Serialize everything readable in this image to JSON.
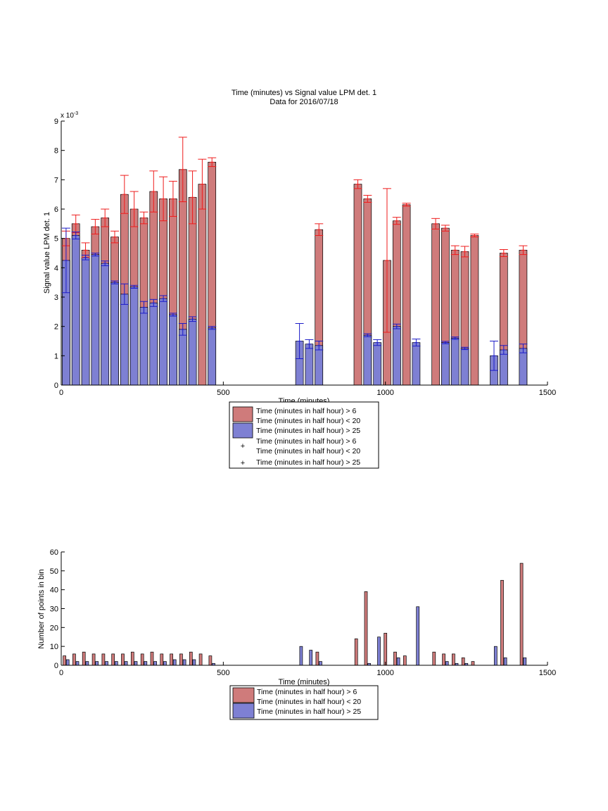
{
  "figure": {
    "title_line1": "Time (minutes) vs Signal value LPM det. 1",
    "title_line2": "Data for 2016/07/18"
  },
  "legend": {
    "entry_gt6_bar": "Time (minutes in half hour) > 6",
    "entry_lt20_bar": "Time (minutes in half hour) < 20",
    "entry_gt25_bar": "Time (minutes in half hour) > 25",
    "entry_gt6_marker": "Time (minutes in half hour) > 6",
    "entry_lt20_marker": "Time (minutes in half hour) < 20",
    "entry_gt25_marker": "Time (minutes in half hour) > 25"
  },
  "colors": {
    "red_bar": "#cf7b7b",
    "blue_bar": "#7e80d3",
    "red_err": "#ee1c1c",
    "blue_err": "#1c1cc8"
  },
  "chart_data": [
    {
      "type": "bar",
      "title": "Time (minutes) vs Signal value LPM det. 1",
      "subtitle": "Data for 2016/07/18",
      "xlabel": "Time (minutes)",
      "ylabel": "Signal value LPM det. 1",
      "y_exponent": "x 10",
      "y_exponent_power": "-3",
      "xlim": [
        0,
        1500
      ],
      "ylim": [
        0,
        9
      ],
      "xticks": [
        0,
        500,
        1000,
        1500
      ],
      "yticks": [
        0,
        1,
        2,
        3,
        4,
        5,
        6,
        7,
        8,
        9
      ],
      "grid": false,
      "legend_position": "below",
      "series": [
        {
          "name": "Time (minutes in half hour) > 6 Time (minutes in half hour) < 20",
          "x": [
            15,
            45,
            75,
            105,
            135,
            165,
            195,
            225,
            255,
            285,
            315,
            345,
            375,
            405,
            435,
            465,
            795,
            915,
            945,
            1005,
            1035,
            1065,
            1155,
            1185,
            1215,
            1245,
            1275,
            1365,
            1425
          ],
          "values": [
            5.0,
            5.5,
            4.6,
            5.4,
            5.7,
            5.05,
            6.5,
            6.0,
            5.7,
            6.6,
            6.35,
            6.35,
            7.35,
            6.4,
            6.85,
            7.6,
            5.3,
            6.85,
            6.35,
            4.25,
            5.6,
            6.15,
            5.5,
            5.35,
            4.6,
            4.55,
            5.1,
            4.5,
            4.6
          ],
          "err": [
            0.25,
            0.3,
            0.25,
            0.25,
            0.3,
            0.2,
            0.65,
            0.6,
            0.2,
            0.7,
            0.75,
            0.6,
            1.1,
            0.9,
            0.85,
            0.15,
            0.2,
            0.15,
            0.12,
            2.45,
            0.12,
            0.05,
            0.18,
            0.1,
            0.15,
            0.18,
            0.05,
            0.12,
            0.15
          ]
        },
        {
          "name": "Time (minutes in half hour) > 25",
          "x": [
            15,
            45,
            75,
            105,
            135,
            165,
            195,
            225,
            255,
            285,
            315,
            345,
            375,
            405,
            465,
            735,
            765,
            795,
            945,
            975,
            1035,
            1095,
            1185,
            1215,
            1245,
            1335,
            1365,
            1425
          ],
          "values": [
            4.25,
            5.1,
            4.35,
            4.45,
            4.15,
            3.5,
            3.1,
            3.35,
            2.65,
            2.8,
            2.95,
            2.4,
            1.9,
            2.25,
            1.95,
            1.5,
            1.4,
            1.35,
            1.7,
            1.45,
            2.0,
            1.45,
            1.45,
            1.6,
            1.25,
            1.0,
            1.2,
            1.25
          ],
          "err": [
            1.1,
            0.12,
            0.08,
            0.05,
            0.08,
            0.05,
            0.35,
            0.05,
            0.2,
            0.12,
            0.1,
            0.05,
            0.2,
            0.08,
            0.05,
            0.6,
            0.15,
            0.15,
            0.05,
            0.1,
            0.08,
            0.12,
            0.04,
            0.04,
            0.04,
            0.5,
            0.15,
            0.15
          ]
        }
      ]
    },
    {
      "type": "bar",
      "xlabel": "Time (minutes)",
      "ylabel": "Number of points in bin",
      "xlim": [
        0,
        1500
      ],
      "ylim": [
        0,
        60
      ],
      "xticks": [
        0,
        500,
        1000,
        1500
      ],
      "yticks": [
        0,
        10,
        20,
        30,
        40,
        50,
        60
      ],
      "grid": false,
      "legend_position": "below",
      "series": [
        {
          "name": "Time (minutes in half hour) > 6 Time (minutes in half hour) < 20",
          "x": [
            15,
            45,
            75,
            105,
            135,
            165,
            195,
            225,
            255,
            285,
            315,
            345,
            375,
            405,
            435,
            465,
            795,
            915,
            945,
            1005,
            1035,
            1065,
            1155,
            1185,
            1215,
            1245,
            1275,
            1365,
            1425
          ],
          "values": [
            5,
            6,
            7,
            6,
            6,
            6,
            6,
            7,
            6,
            7,
            6,
            6,
            6,
            7,
            6,
            5,
            7,
            14,
            39,
            17,
            7,
            5,
            7,
            6,
            6,
            4,
            2,
            45,
            54
          ]
        },
        {
          "name": "Time (minutes in half hour) > 25",
          "x": [
            15,
            45,
            75,
            105,
            135,
            165,
            195,
            225,
            255,
            285,
            315,
            345,
            375,
            405,
            465,
            735,
            765,
            795,
            945,
            975,
            1035,
            1095,
            1185,
            1215,
            1245,
            1335,
            1365,
            1425
          ],
          "values": [
            3,
            2,
            2,
            2,
            2,
            2,
            2,
            2,
            2,
            2,
            2,
            3,
            3,
            3,
            1,
            10,
            8,
            2,
            1,
            15,
            4,
            31,
            2,
            1,
            1,
            10,
            4,
            4
          ]
        }
      ]
    }
  ]
}
